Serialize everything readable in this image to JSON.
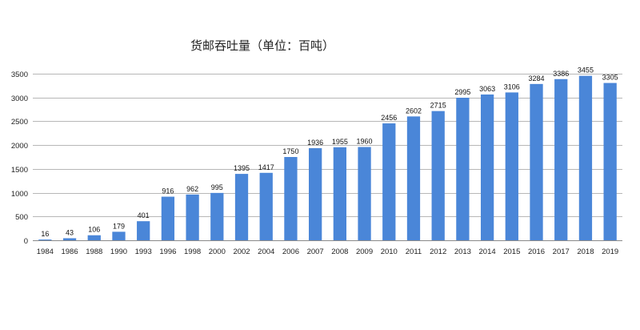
{
  "chart_data": {
    "type": "bar",
    "title": "货邮吞吐量（单位：百吨）",
    "xlabel": "",
    "ylabel": "",
    "categories": [
      "1984",
      "1986",
      "1988",
      "1990",
      "1993",
      "1996",
      "1998",
      "2000",
      "2002",
      "2004",
      "2006",
      "2007",
      "2008",
      "2009",
      "2010",
      "2011",
      "2012",
      "2013",
      "2014",
      "2015",
      "2016",
      "2017",
      "2018",
      "2019"
    ],
    "values": [
      16,
      43,
      106,
      179,
      401,
      916,
      962,
      995,
      1395,
      1417,
      1750,
      1936,
      1955,
      1960,
      2456,
      2602,
      2715,
      2995,
      3063,
      3106,
      3284,
      3386,
      3455,
      3305
    ],
    "ylim": [
      0,
      3500
    ],
    "yticks": [
      0,
      500,
      1000,
      1500,
      2000,
      2500,
      3000,
      3500
    ],
    "grid": true,
    "legend": "none",
    "colors": {
      "bar": "#4a86d8",
      "grid": "#b7b7b7",
      "text": "#222222"
    }
  }
}
